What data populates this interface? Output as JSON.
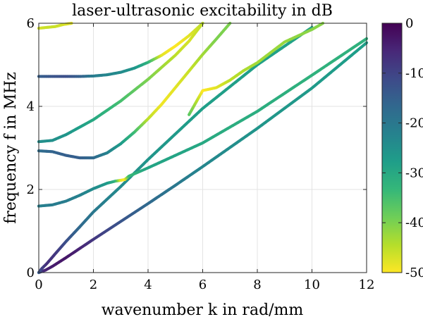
{
  "chart_data": {
    "type": "scatter",
    "title": "laser-ultrasonic excitability in dB",
    "xlabel": "wavenumber k in rad/mm",
    "ylabel": "frequency f in MHz",
    "xlim": [
      0,
      12
    ],
    "ylim": [
      0,
      6
    ],
    "xticks": [
      0,
      2,
      4,
      6,
      8,
      10,
      12
    ],
    "yticks": [
      0,
      2,
      4,
      6
    ],
    "grid": true,
    "colormap": "viridis",
    "colormap_stops": [
      "#440154",
      "#482878",
      "#3e4a89",
      "#31688e",
      "#26828e",
      "#1f9e89",
      "#35b779",
      "#6ece58",
      "#b5de2b",
      "#fde725"
    ],
    "colorbar": {
      "limits": [
        -50,
        0
      ],
      "ticks": [
        0,
        -10,
        -20,
        -30,
        -40,
        -50
      ],
      "labels": [
        "0",
        "-10",
        "-20",
        "-30",
        "-40",
        "-50"
      ]
    },
    "series": [
      {
        "points": [
          [
            0,
            0,
            -12
          ],
          [
            0.25,
            0.06,
            -5
          ],
          [
            0.5,
            0.15,
            -4
          ],
          [
            1,
            0.36,
            -3
          ],
          [
            1.5,
            0.58,
            -5
          ],
          [
            2,
            0.8,
            -8
          ],
          [
            3,
            1.23,
            -13
          ],
          [
            4,
            1.66,
            -17
          ],
          [
            5,
            2.1,
            -20
          ],
          [
            6,
            2.55,
            -23
          ],
          [
            8,
            3.47,
            -26
          ],
          [
            10,
            4.44,
            -27
          ],
          [
            12,
            5.53,
            -28
          ]
        ]
      },
      {
        "points": [
          [
            0,
            0,
            -14
          ],
          [
            0.1,
            0.09,
            -10
          ],
          [
            0.3,
            0.22,
            -7
          ],
          [
            0.6,
            0.45,
            -8
          ],
          [
            1,
            0.75,
            -12
          ],
          [
            1.5,
            1.1,
            -17
          ],
          [
            2,
            1.46,
            -20
          ],
          [
            3,
            2.07,
            -24
          ],
          [
            4,
            2.72,
            -26
          ],
          [
            6,
            3.95,
            -28
          ],
          [
            8,
            5.0,
            -28
          ],
          [
            10,
            5.9,
            -29
          ]
        ]
      },
      {
        "points": [
          [
            0,
            1.6,
            -22
          ],
          [
            0.5,
            1.63,
            -21
          ],
          [
            1,
            1.72,
            -21
          ],
          [
            1.5,
            1.86,
            -22
          ],
          [
            2,
            2.02,
            -24
          ],
          [
            2.5,
            2.15,
            -27
          ],
          [
            2.8,
            2.2,
            -32
          ],
          [
            3.0,
            2.22,
            -48
          ],
          [
            3.15,
            2.24,
            -50
          ],
          [
            3.3,
            2.32,
            -34
          ],
          [
            4,
            2.52,
            -29
          ],
          [
            5,
            2.82,
            -29
          ],
          [
            6,
            3.12,
            -30
          ],
          [
            7,
            3.5,
            -31
          ],
          [
            8,
            3.88,
            -31
          ],
          [
            10,
            4.75,
            -32
          ],
          [
            12,
            5.63,
            -32
          ]
        ]
      },
      {
        "points": [
          [
            0,
            2.93,
            -18
          ],
          [
            0.5,
            2.91,
            -16
          ],
          [
            1,
            2.82,
            -15
          ],
          [
            1.5,
            2.76,
            -15
          ],
          [
            2,
            2.76,
            -17
          ],
          [
            2.5,
            2.88,
            -22
          ],
          [
            3,
            3.1,
            -27
          ],
          [
            3.5,
            3.38,
            -34
          ],
          [
            4,
            3.7,
            -45
          ],
          [
            4.5,
            4.05,
            -49
          ],
          [
            5,
            4.45,
            -48
          ],
          [
            5.5,
            4.85,
            -46
          ],
          [
            6,
            5.25,
            -43
          ],
          [
            6.5,
            5.62,
            -40
          ],
          [
            7,
            6.0,
            -40
          ]
        ]
      },
      {
        "points": [
          [
            0,
            3.15,
            -25
          ],
          [
            0.5,
            3.18,
            -25
          ],
          [
            1,
            3.32,
            -26
          ],
          [
            2,
            3.68,
            -30
          ],
          [
            3,
            4.13,
            -35
          ],
          [
            4,
            4.65,
            -40
          ],
          [
            5,
            5.23,
            -45
          ],
          [
            5.5,
            5.57,
            -47
          ],
          [
            6,
            6.0,
            -45
          ]
        ]
      },
      {
        "points": [
          [
            0,
            4.72,
            -15
          ],
          [
            0.5,
            4.72,
            -13
          ],
          [
            1,
            4.72,
            -12
          ],
          [
            1.5,
            4.72,
            -15
          ],
          [
            2,
            4.73,
            -21
          ],
          [
            2.5,
            4.76,
            -23
          ],
          [
            3,
            4.82,
            -24
          ],
          [
            3.5,
            4.92,
            -26
          ],
          [
            4,
            5.06,
            -32
          ],
          [
            4.5,
            5.23,
            -48
          ],
          [
            5,
            5.45,
            -50
          ],
          [
            5.5,
            5.7,
            -48
          ],
          [
            6,
            6.0,
            -45
          ]
        ]
      },
      {
        "points": [
          [
            5.5,
            3.8,
            -37
          ],
          [
            6,
            4.38,
            -50
          ],
          [
            6.5,
            4.45,
            -48
          ],
          [
            7,
            4.63,
            -45
          ],
          [
            7.5,
            4.86,
            -44
          ],
          [
            8,
            5.05,
            -43
          ],
          [
            9,
            5.55,
            -42
          ],
          [
            10,
            5.85,
            -41
          ],
          [
            10.4,
            6.0,
            -41
          ]
        ]
      },
      {
        "points": [
          [
            0,
            5.88,
            -47
          ],
          [
            0.3,
            5.9,
            -46
          ],
          [
            0.6,
            5.92,
            -46
          ],
          [
            0.9,
            5.97,
            -47
          ],
          [
            1.2,
            6.0,
            -48
          ]
        ]
      }
    ]
  }
}
